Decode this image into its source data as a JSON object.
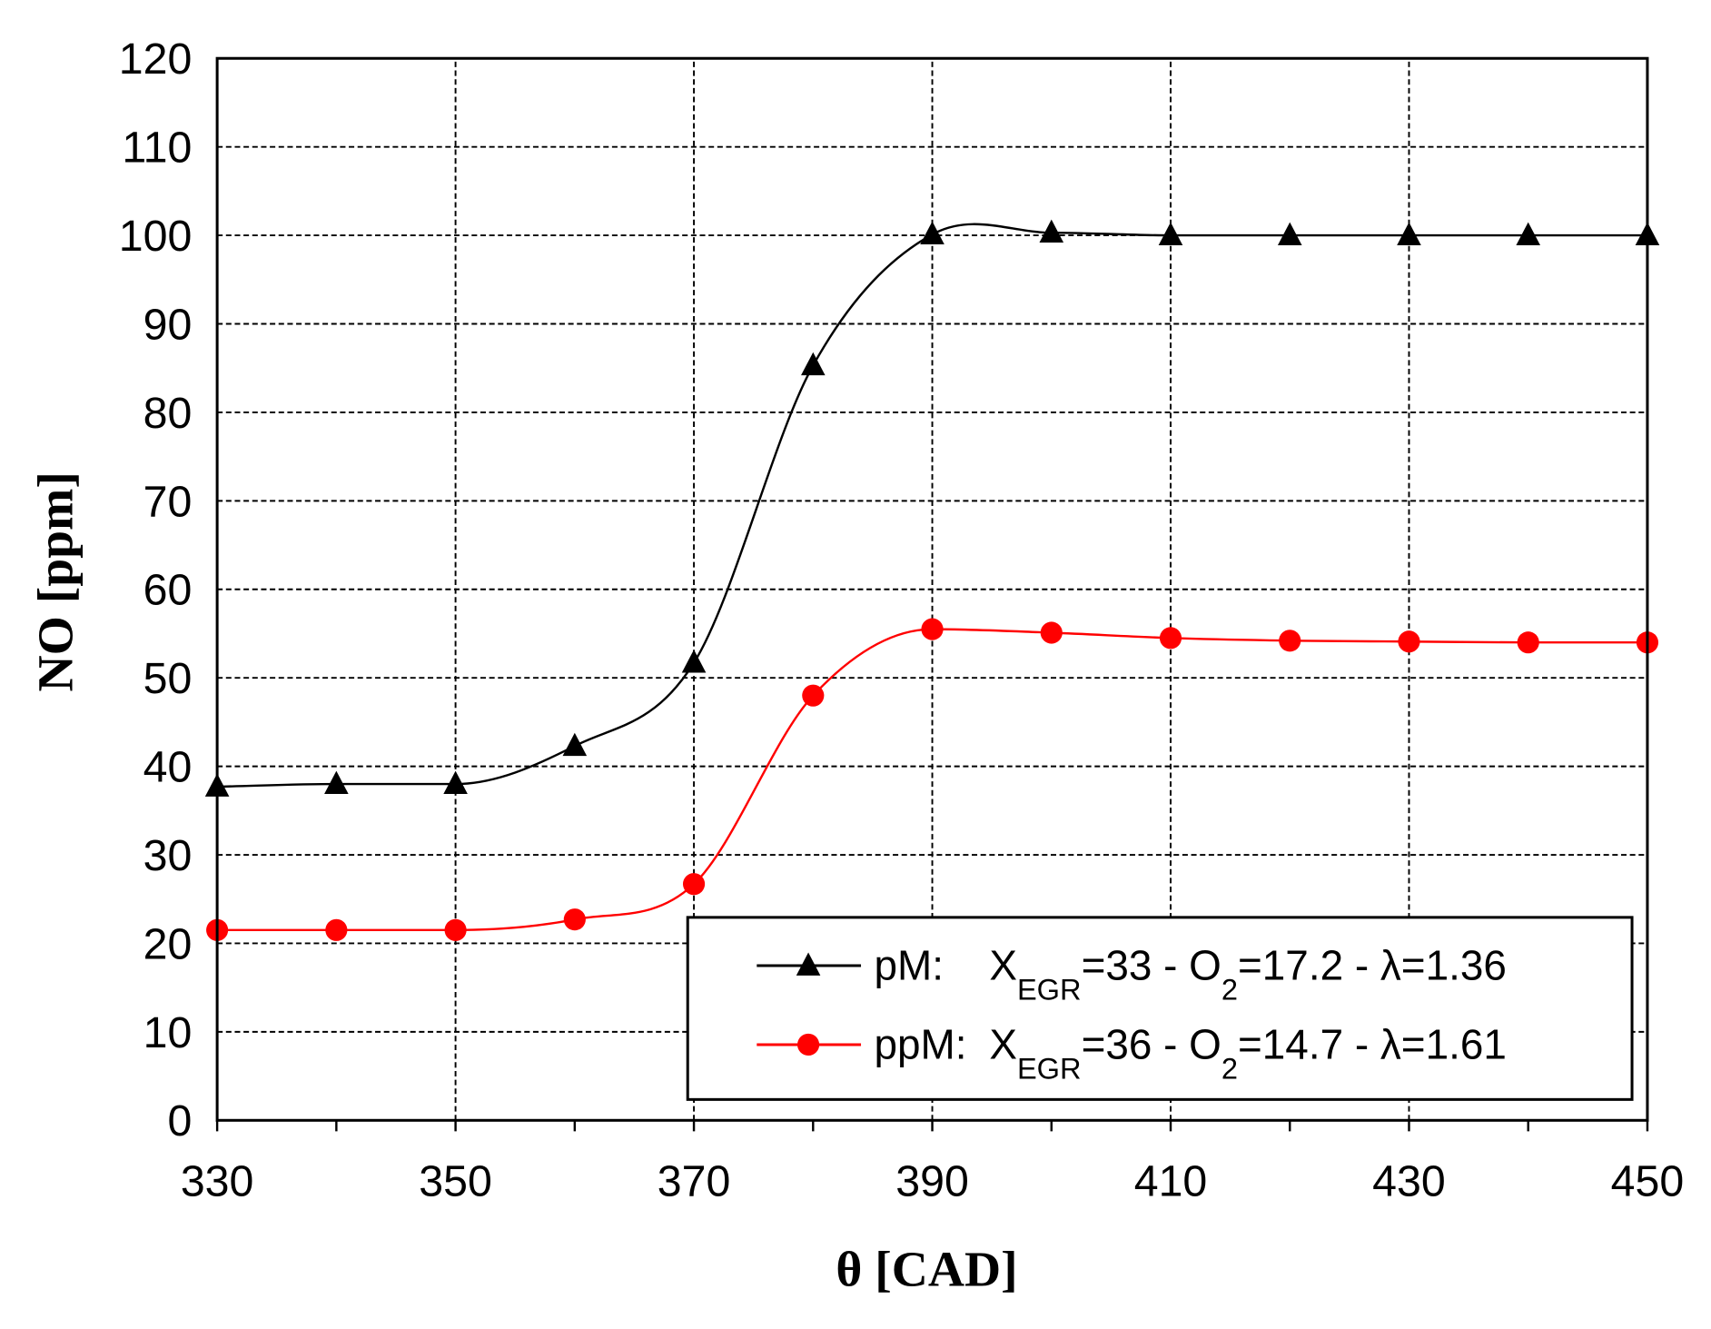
{
  "chart_data": {
    "type": "line",
    "title": "",
    "xlabel": "θ [CAD]",
    "ylabel": "NO [ppm]",
    "xlim": [
      330,
      450
    ],
    "ylim": [
      0,
      120
    ],
    "xticks": [
      330,
      350,
      370,
      390,
      410,
      430,
      450
    ],
    "yticks": [
      0,
      10,
      20,
      30,
      40,
      50,
      60,
      70,
      80,
      90,
      100,
      110,
      120
    ],
    "grid": true,
    "legend_position": "bottom-right",
    "x": [
      330,
      340,
      350,
      360,
      370,
      380,
      390,
      400,
      410,
      420,
      430,
      440,
      450
    ],
    "series": [
      {
        "name": "pM",
        "legend_label": "pM:",
        "xegr": "33",
        "o2": "17.2",
        "lambda": "1.36",
        "color": "#000000",
        "marker": "triangle",
        "values": [
          37.7,
          38.0,
          38.0,
          42.3,
          51.7,
          85.3,
          100.1,
          100.3,
          100.0,
          100.0,
          100.0,
          100.0,
          100.0
        ]
      },
      {
        "name": "ppM",
        "legend_label": "ppM:",
        "xegr": "36",
        "o2": "14.7",
        "lambda": "1.61",
        "color": "#ff0000",
        "marker": "circle",
        "values": [
          21.5,
          21.5,
          21.5,
          22.7,
          26.7,
          48.0,
          55.5,
          55.1,
          54.5,
          54.2,
          54.1,
          54.0,
          54.0
        ]
      }
    ],
    "legend_text": {
      "x": "X",
      "egr": "EGR",
      "eq1": "=",
      "sep1": " - O",
      "o2sub": "2",
      "eq2": "=",
      "sep2": " - λ="
    }
  }
}
